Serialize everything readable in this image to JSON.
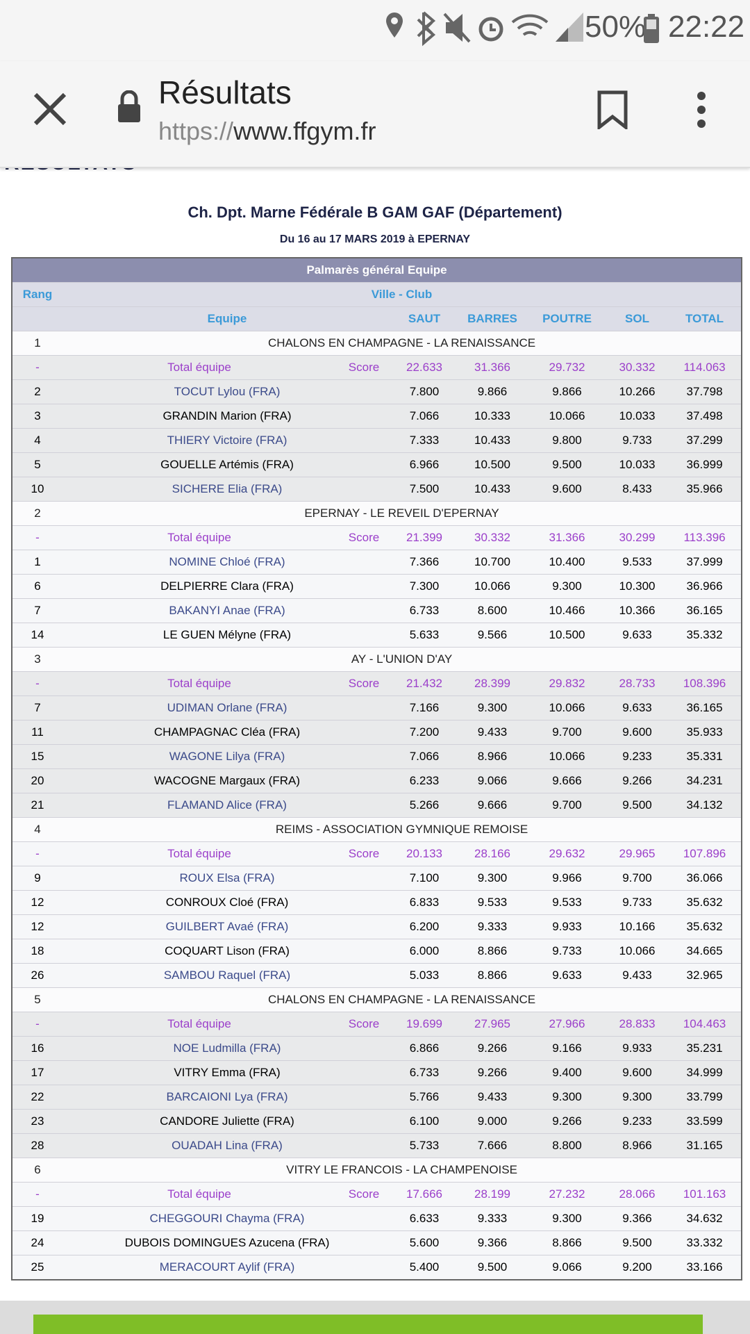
{
  "status": {
    "battery": "50%",
    "time": "22:22"
  },
  "browser": {
    "title": "Résultats",
    "url_scheme": "https://",
    "url_host": "www.ffgym.fr"
  },
  "page": {
    "heading": "RÉSULTATS",
    "title": "Ch. Dpt. Marne Fédérale B GAM GAF (Département)",
    "subtitle": "Du 16 au 17 MARS 2019 à EPERNAY"
  },
  "table": {
    "caption": "Palmarès général Equipe",
    "rank_header": "Rang",
    "club_header": "Ville - Club",
    "columns": [
      "Equipe",
      "SAUT",
      "BARRES",
      "POUTRE",
      "SOL",
      "TOTAL"
    ],
    "teams": [
      {
        "rank": "1",
        "club": "CHALONS EN CHAMPAGNE - LA RENAISSANCE",
        "total": [
          "-",
          "Total équipe",
          "Score",
          "22.633",
          "31.366",
          "29.732",
          "30.332",
          "114.063"
        ],
        "members": [
          [
            "2",
            "TOCUT Lylou (FRA)",
            "7.800",
            "9.866",
            "9.866",
            "10.266",
            "37.798"
          ],
          [
            "3",
            "GRANDIN Marion (FRA)",
            "7.066",
            "10.333",
            "10.066",
            "10.033",
            "37.498"
          ],
          [
            "4",
            "THIERY Victoire (FRA)",
            "7.333",
            "10.433",
            "9.800",
            "9.733",
            "37.299"
          ],
          [
            "5",
            "GOUELLE Artémis (FRA)",
            "6.966",
            "10.500",
            "9.500",
            "10.033",
            "36.999"
          ],
          [
            "10",
            "SICHERE Elia (FRA)",
            "7.500",
            "10.433",
            "9.600",
            "8.433",
            "35.966"
          ]
        ]
      },
      {
        "rank": "2",
        "club": "EPERNAY - LE REVEIL D'EPERNAY",
        "total": [
          "-",
          "Total équipe",
          "Score",
          "21.399",
          "30.332",
          "31.366",
          "30.299",
          "113.396"
        ],
        "members": [
          [
            "1",
            "NOMINE Chloé (FRA)",
            "7.366",
            "10.700",
            "10.400",
            "9.533",
            "37.999"
          ],
          [
            "6",
            "DELPIERRE Clara (FRA)",
            "7.300",
            "10.066",
            "9.300",
            "10.300",
            "36.966"
          ],
          [
            "7",
            "BAKANYI Anae (FRA)",
            "6.733",
            "8.600",
            "10.466",
            "10.366",
            "36.165"
          ],
          [
            "14",
            "LE GUEN Mélyne (FRA)",
            "5.633",
            "9.566",
            "10.500",
            "9.633",
            "35.332"
          ]
        ]
      },
      {
        "rank": "3",
        "club": "AY - L'UNION D'AY",
        "total": [
          "-",
          "Total équipe",
          "Score",
          "21.432",
          "28.399",
          "29.832",
          "28.733",
          "108.396"
        ],
        "members": [
          [
            "7",
            "UDIMAN Orlane (FRA)",
            "7.166",
            "9.300",
            "10.066",
            "9.633",
            "36.165"
          ],
          [
            "11",
            "CHAMPAGNAC Cléa (FRA)",
            "7.200",
            "9.433",
            "9.700",
            "9.600",
            "35.933"
          ],
          [
            "15",
            "WAGONE Lilya (FRA)",
            "7.066",
            "8.966",
            "10.066",
            "9.233",
            "35.331"
          ],
          [
            "20",
            "WACOGNE Margaux (FRA)",
            "6.233",
            "9.066",
            "9.666",
            "9.266",
            "34.231"
          ],
          [
            "21",
            "FLAMAND Alice (FRA)",
            "5.266",
            "9.666",
            "9.700",
            "9.500",
            "34.132"
          ]
        ]
      },
      {
        "rank": "4",
        "club": "REIMS - ASSOCIATION GYMNIQUE REMOISE",
        "total": [
          "-",
          "Total équipe",
          "Score",
          "20.133",
          "28.166",
          "29.632",
          "29.965",
          "107.896"
        ],
        "members": [
          [
            "9",
            "ROUX Elsa (FRA)",
            "7.100",
            "9.300",
            "9.966",
            "9.700",
            "36.066"
          ],
          [
            "12",
            "CONROUX Cloé (FRA)",
            "6.833",
            "9.533",
            "9.533",
            "9.733",
            "35.632"
          ],
          [
            "12",
            "GUILBERT Avaé (FRA)",
            "6.200",
            "9.333",
            "9.933",
            "10.166",
            "35.632"
          ],
          [
            "18",
            "COQUART Lison (FRA)",
            "6.000",
            "8.866",
            "9.733",
            "10.066",
            "34.665"
          ],
          [
            "26",
            "SAMBOU Raquel (FRA)",
            "5.033",
            "8.866",
            "9.633",
            "9.433",
            "32.965"
          ]
        ]
      },
      {
        "rank": "5",
        "club": "CHALONS EN CHAMPAGNE - LA RENAISSANCE",
        "total": [
          "-",
          "Total équipe",
          "Score",
          "19.699",
          "27.965",
          "27.966",
          "28.833",
          "104.463"
        ],
        "members": [
          [
            "16",
            "NOE Ludmilla (FRA)",
            "6.866",
            "9.266",
            "9.166",
            "9.933",
            "35.231"
          ],
          [
            "17",
            "VITRY Emma (FRA)",
            "6.733",
            "9.266",
            "9.400",
            "9.600",
            "34.999"
          ],
          [
            "22",
            "BARCAIONI Lya (FRA)",
            "5.766",
            "9.433",
            "9.300",
            "9.300",
            "33.799"
          ],
          [
            "23",
            "CANDORE Juliette (FRA)",
            "6.100",
            "9.000",
            "9.266",
            "9.233",
            "33.599"
          ],
          [
            "28",
            "OUADAH Lina (FRA)",
            "5.733",
            "7.666",
            "8.800",
            "8.966",
            "31.165"
          ]
        ]
      },
      {
        "rank": "6",
        "club": "VITRY LE FRANCOIS - LA CHAMPENOISE",
        "total": [
          "-",
          "Total équipe",
          "Score",
          "17.666",
          "28.199",
          "27.232",
          "28.066",
          "101.163"
        ],
        "members": [
          [
            "19",
            "CHEGGOURI Chayma (FRA)",
            "6.633",
            "9.333",
            "9.300",
            "9.366",
            "34.632"
          ],
          [
            "24",
            "DUBOIS DOMINGUES Azucena (FRA)",
            "5.600",
            "9.366",
            "8.866",
            "9.500",
            "33.332"
          ],
          [
            "25",
            "MERACOURT Aylif (FRA)",
            "5.400",
            "9.500",
            "9.066",
            "9.200",
            "33.166"
          ]
        ]
      }
    ]
  }
}
